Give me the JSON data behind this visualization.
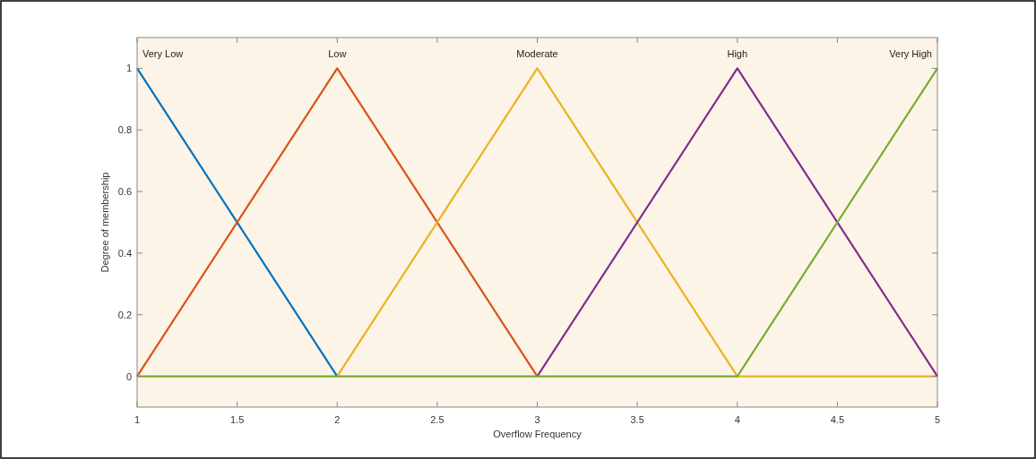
{
  "chart_data": {
    "type": "line",
    "xlabel": "Overflow Frequency",
    "ylabel": "Degree of membership",
    "x": [
      1,
      2,
      3,
      4,
      5
    ],
    "series": [
      {
        "name": "Very Low",
        "color": "#0072bd",
        "values": [
          1,
          0,
          null,
          null,
          null
        ]
      },
      {
        "name": "Low",
        "color": "#d95319",
        "values": [
          0,
          1,
          0,
          null,
          null
        ]
      },
      {
        "name": "Moderate",
        "color": "#edb120",
        "values": [
          null,
          0,
          1,
          0,
          0
        ]
      },
      {
        "name": "High",
        "color": "#7e2f8e",
        "values": [
          null,
          null,
          0,
          1,
          0
        ]
      },
      {
        "name": "Very High",
        "color": "#77ac30",
        "values": [
          0,
          0,
          0,
          0,
          1
        ]
      }
    ],
    "xlim": [
      1,
      5
    ],
    "xticks": [
      1,
      1.5,
      2,
      2.5,
      3,
      3.5,
      4,
      4.5,
      5
    ],
    "ylim": [
      -0.1,
      1.1
    ],
    "yticks": [
      0,
      0.2,
      0.4,
      0.6,
      0.8,
      1
    ],
    "grid": false,
    "marker": "none",
    "line_style": "solid"
  }
}
